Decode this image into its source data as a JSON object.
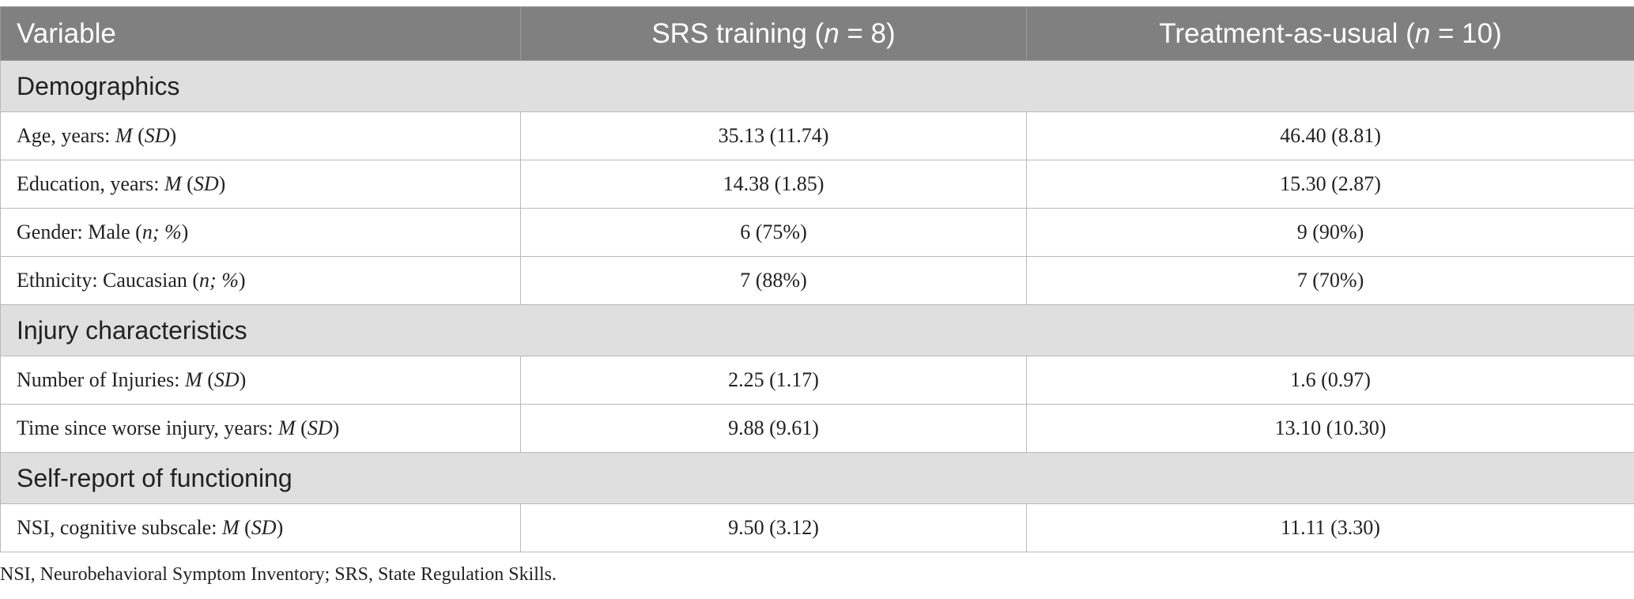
{
  "table": {
    "header": {
      "variable": "Variable",
      "col1_pre": "SRS training (",
      "col1_n": "n",
      "col1_post": " = 8)",
      "col2_pre": "Treatment-as-usual (",
      "col2_n": "n",
      "col2_post": " = 10)"
    },
    "sections": [
      {
        "title": "Demographics",
        "rows": [
          {
            "label": "Age, years: ",
            "stat": "M",
            "stat_open": " (",
            "stat2": "SD",
            "stat_close": ")",
            "srs": "35.13 (11.74)",
            "tau": "46.40 (8.81)"
          },
          {
            "label": "Education, years: ",
            "stat": "M",
            "stat_open": " (",
            "stat2": "SD",
            "stat_close": ")",
            "srs": "14.38 (1.85)",
            "tau": "15.30 (2.87)"
          },
          {
            "label": "Gender: Male (",
            "stat": "n; %",
            "stat_open": "",
            "stat2": "",
            "stat_close": ")",
            "srs": "6 (75%)",
            "tau": "9 (90%)"
          },
          {
            "label": "Ethnicity: Caucasian (",
            "stat": "n; %",
            "stat_open": "",
            "stat2": "",
            "stat_close": ")",
            "srs": "7 (88%)",
            "tau": "7 (70%)"
          }
        ]
      },
      {
        "title": "Injury characteristics",
        "rows": [
          {
            "label": "Number of Injuries: ",
            "stat": "M",
            "stat_open": " (",
            "stat2": "SD",
            "stat_close": ")",
            "srs": "2.25 (1.17)",
            "tau": "1.6 (0.97)"
          },
          {
            "label": "Time since worse injury, years: ",
            "stat": "M",
            "stat_open": " (",
            "stat2": "SD",
            "stat_close": ")",
            "srs": "9.88 (9.61)",
            "tau": "13.10 (10.30)"
          }
        ]
      },
      {
        "title": "Self-report of functioning",
        "rows": [
          {
            "label": "NSI, cognitive subscale: ",
            "stat": "M",
            "stat_open": " (",
            "stat2": "SD",
            "stat_close": ")",
            "srs": "9.50 (3.12)",
            "tau": "11.11 (3.30)"
          }
        ]
      }
    ]
  },
  "footnote": "NSI, Neurobehavioral Symptom Inventory; SRS, State Regulation Skills."
}
